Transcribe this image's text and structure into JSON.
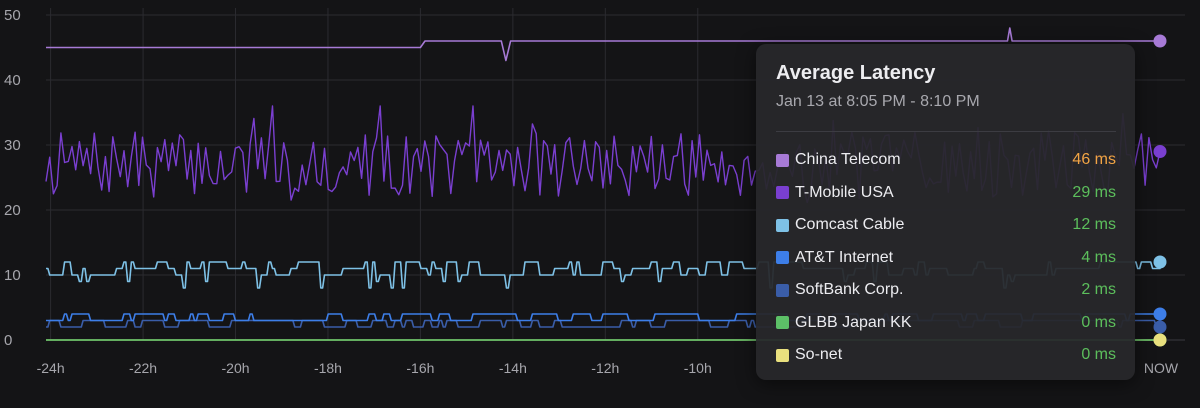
{
  "chart_data": {
    "type": "line",
    "title": "Average Latency",
    "subtitle": "Jan 13 at 8:05 PM - 8:10 PM",
    "xlabel": "",
    "ylabel": "",
    "ylim": [
      0,
      50
    ],
    "xlim": [
      -24.1,
      0
    ],
    "y_ticks": [
      "0",
      "10",
      "20",
      "30",
      "40",
      "50"
    ],
    "x_ticks": [
      {
        "at": -24,
        "label": "-24h"
      },
      {
        "at": -22,
        "label": "-22h"
      },
      {
        "at": -20,
        "label": "-20h"
      },
      {
        "at": -18,
        "label": "-18h"
      },
      {
        "at": -16,
        "label": "-16h"
      },
      {
        "at": -14,
        "label": "-14h"
      },
      {
        "at": -12,
        "label": "-12h"
      },
      {
        "at": -10,
        "label": "-10h"
      },
      {
        "at": 0,
        "label": "NOW"
      }
    ],
    "grid": true,
    "series": [
      {
        "name": "China Telecom",
        "color": "#a77ad6",
        "current": 46,
        "value_label": "46 ms",
        "value_color": "#f2a445",
        "points": [
          [
            -24.1,
            45
          ],
          [
            -16.0,
            45
          ],
          [
            -15.9,
            46
          ],
          [
            -14.25,
            46
          ],
          [
            -14.15,
            43
          ],
          [
            -14.05,
            46
          ],
          [
            -3.3,
            46
          ],
          [
            -3.25,
            48
          ],
          [
            -3.2,
            46
          ],
          [
            0,
            46
          ]
        ]
      },
      {
        "name": "T-Mobile USA",
        "color": "#7a3fd0",
        "current": 29,
        "value_label": "29 ms",
        "value_color": "#5cbf5c",
        "base": 27,
        "spread": 5,
        "seed": 7
      },
      {
        "name": "Comcast Cable",
        "color": "#7ec1e6",
        "current": 12,
        "value_label": "12 ms",
        "value_color": "#5cbf5c",
        "base": 11,
        "steps": [
          10,
          11,
          12
        ],
        "dips": [
          8,
          9
        ],
        "seed": 13
      },
      {
        "name": "AT&T Internet",
        "color": "#3d7ee8",
        "current": 4,
        "value_label": "4 ms",
        "value_color": "#5cbf5c",
        "base": 4,
        "steps": [
          3,
          4
        ],
        "seed": 21
      },
      {
        "name": "SoftBank Corp.",
        "color": "#3a5da8",
        "current": 2,
        "value_label": "2 ms",
        "value_color": "#5cbf5c",
        "base": 2,
        "steps": [
          2,
          3
        ],
        "seed": 31
      },
      {
        "name": "GLBB Japan KK",
        "color": "#5cc067",
        "current": 0,
        "value_label": "0 ms",
        "value_color": "#5cbf5c",
        "flat": 0
      },
      {
        "name": "So-net",
        "color": "#e9e07e",
        "current": 0,
        "value_label": "0 ms",
        "value_color": "#5cbf5c",
        "flat": 0
      }
    ]
  }
}
